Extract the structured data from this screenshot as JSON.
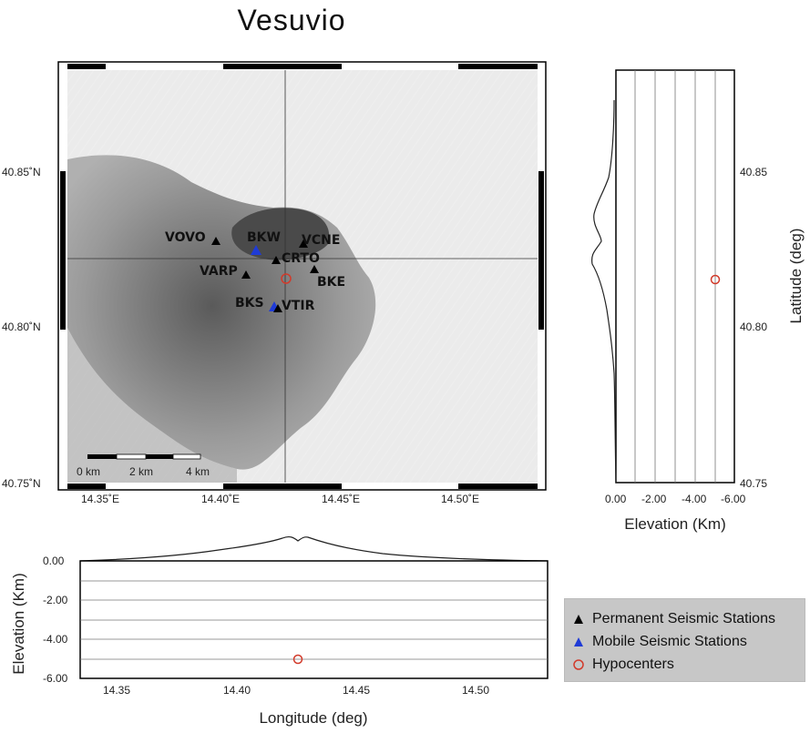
{
  "title": "Vesuvio",
  "map": {
    "lon_ticks": [
      "14.35˚E",
      "14.40˚E",
      "14.45˚E",
      "14.50˚E"
    ],
    "lat_ticks": [
      "40.85˚N",
      "40.80˚N",
      "40.75˚N"
    ],
    "scale_bar": [
      "0 km",
      "2 km",
      "4 km"
    ]
  },
  "stations": {
    "permanent": [
      "VOVO",
      "VCNE",
      "CRTO",
      "VARP",
      "BKE",
      "VTIR"
    ],
    "mobile": [
      "BKW",
      "BKS"
    ]
  },
  "hypocenter": {
    "lon": 14.427,
    "lat": 40.816,
    "depth_km": -5.1
  },
  "east_profile": {
    "x_ticks": [
      "0.00",
      "-2.00",
      "-4.00",
      "-6.00"
    ],
    "y_ticks": [
      "40.85",
      "40.80",
      "40.75"
    ],
    "xlabel": "Elevation (Km)",
    "ylabel": "Latitude (deg)"
  },
  "south_profile": {
    "y_ticks": [
      "0.00",
      "-2.00",
      "-4.00",
      "-6.00"
    ],
    "x_ticks": [
      "14.35",
      "14.40",
      "14.45",
      "14.50"
    ],
    "xlabel": "Longitude (deg)",
    "ylabel": "Elevation (Km)"
  },
  "legend": {
    "permanent": "Permanent Seismic Stations",
    "mobile": "Mobile Seismic Stations",
    "hypocenters": "Hypocenters"
  },
  "colors": {
    "permanent": "#000000",
    "mobile": "#1f3bd6",
    "hypocenter": "#d23a2a"
  }
}
